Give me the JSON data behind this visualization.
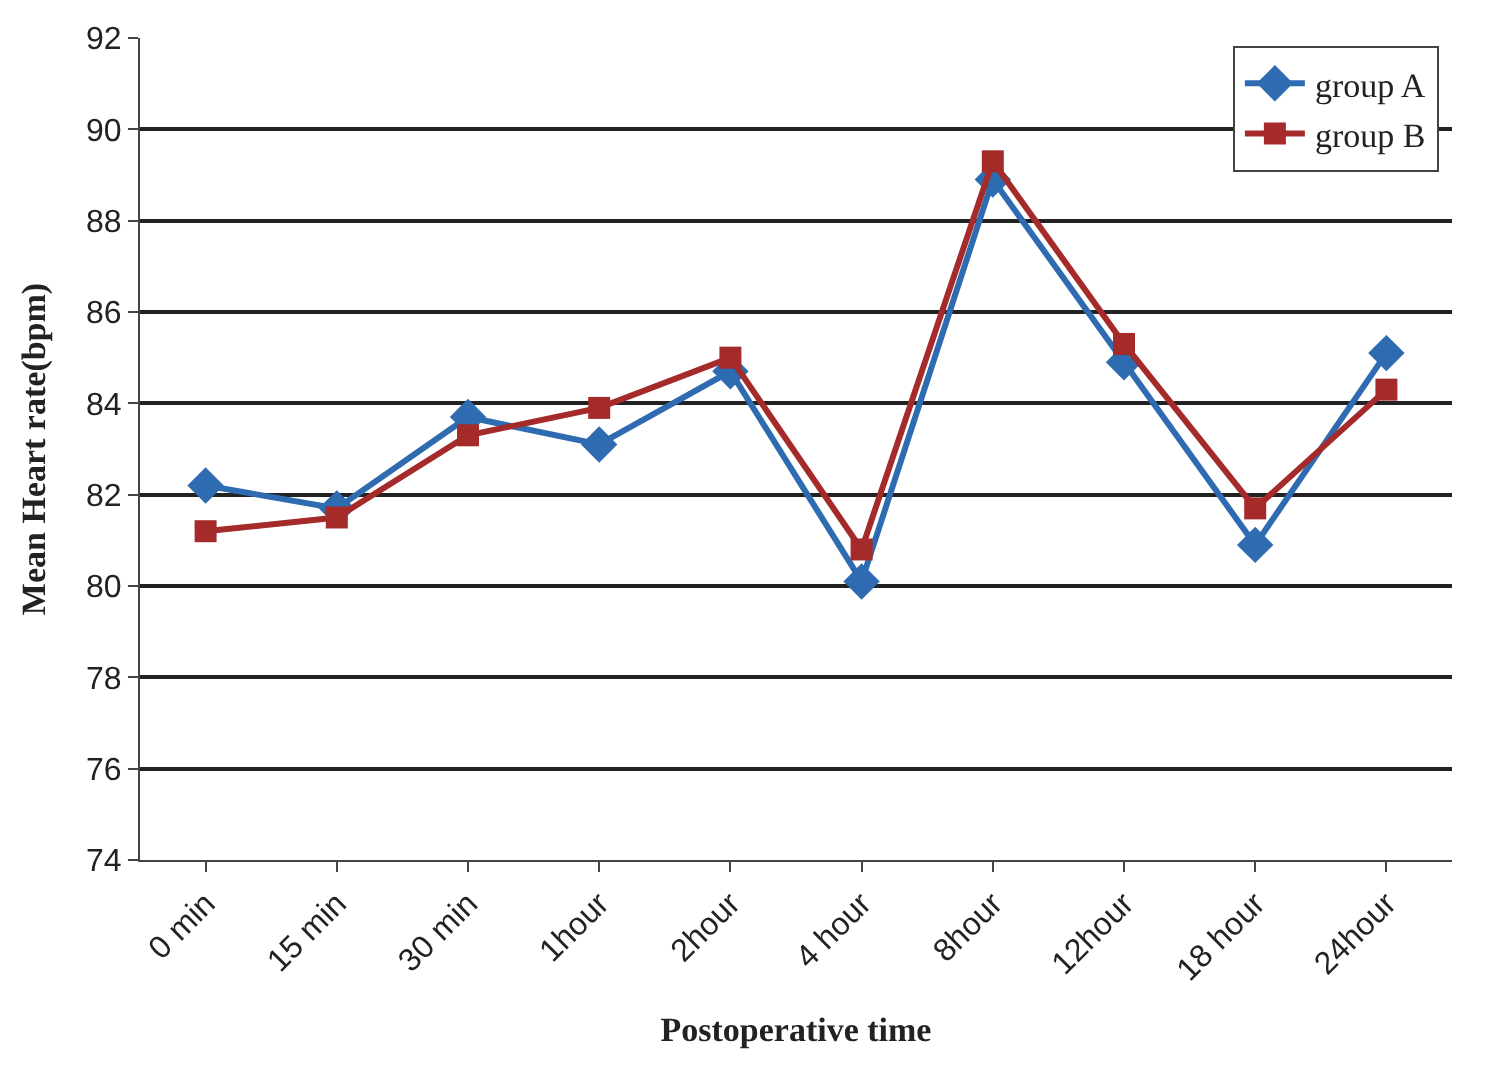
{
  "chart_data": {
    "type": "line",
    "xlabel": "Postoperative time",
    "ylabel": "Mean Heart rate(bpm)",
    "categories": [
      "0 min",
      "15 min",
      "30 min",
      "1hour",
      "2hour",
      "4 hour",
      "8hour",
      "12hour",
      "18 hour",
      "24hour"
    ],
    "series": [
      {
        "name": "group A",
        "color": "#2e6bb0",
        "marker": "diamond",
        "values": [
          82.2,
          81.7,
          83.7,
          83.1,
          84.7,
          80.1,
          88.9,
          84.9,
          80.9,
          85.1
        ]
      },
      {
        "name": "group B",
        "color": "#a52a2a",
        "marker": "square",
        "values": [
          81.2,
          81.5,
          83.3,
          83.9,
          85.0,
          80.8,
          89.3,
          85.3,
          81.7,
          84.3
        ]
      }
    ],
    "ylim": [
      74,
      92
    ],
    "yticks": [
      74,
      76,
      78,
      80,
      82,
      84,
      86,
      88,
      90,
      92
    ],
    "grid": "y",
    "legend": "top right"
  }
}
